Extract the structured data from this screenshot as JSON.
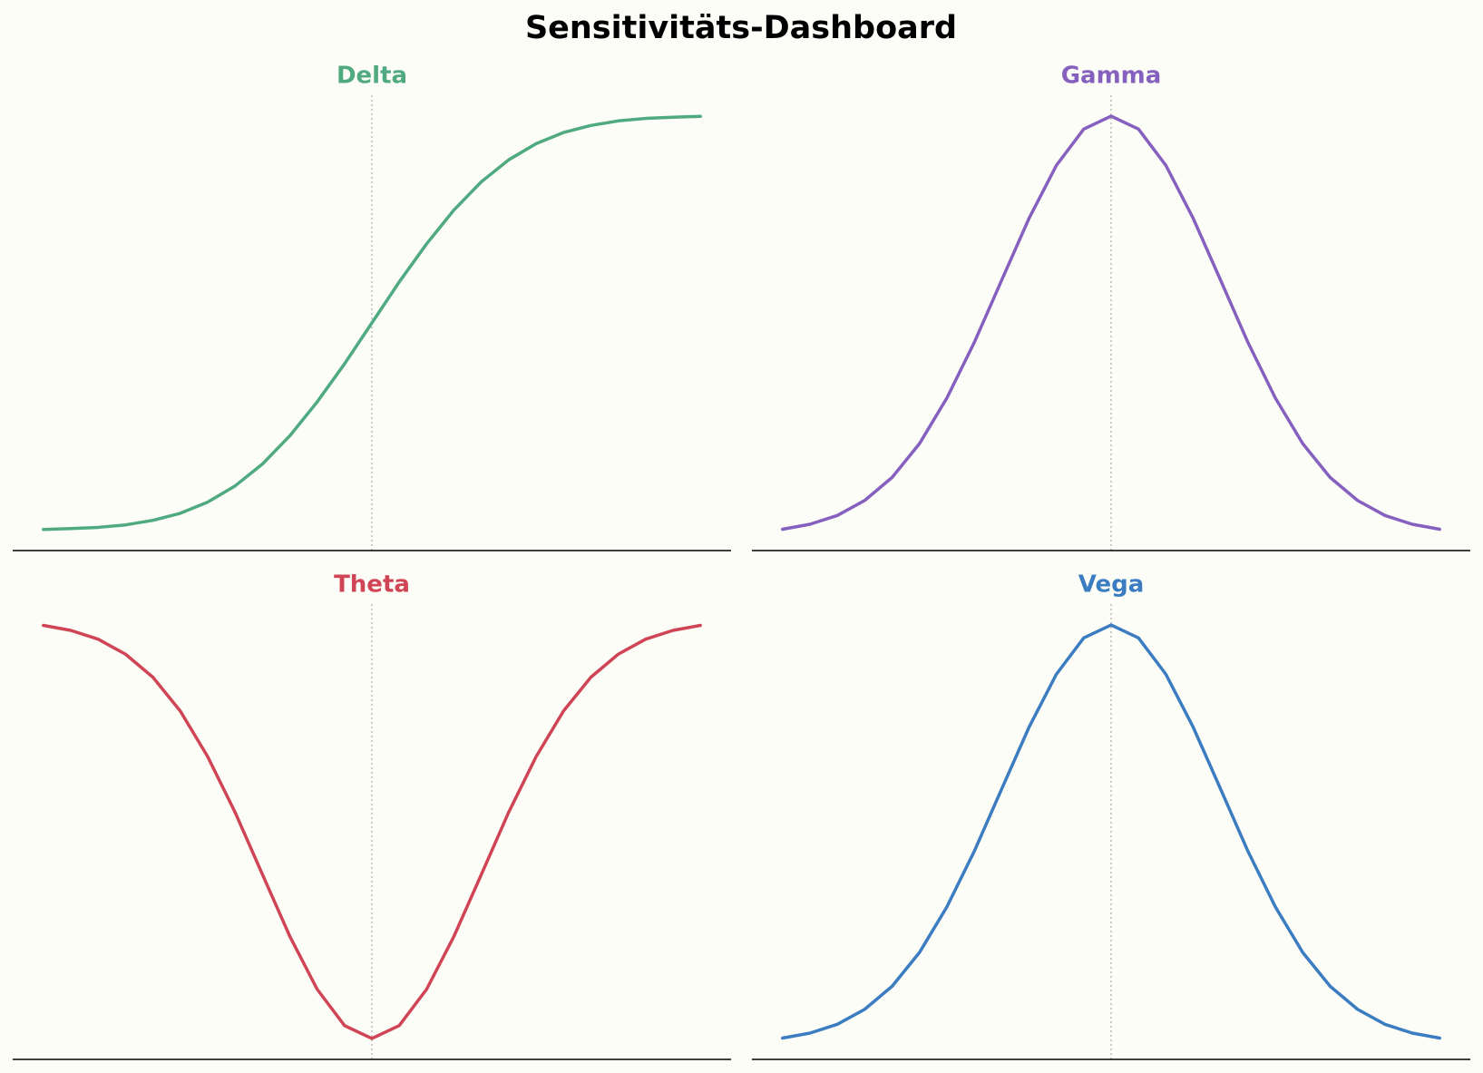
{
  "title": "Sensitivitäts-Dashboard",
  "chart_data": [
    {
      "type": "line",
      "title": "Delta",
      "color": "#4fab7f",
      "x": [
        -3,
        -2.75,
        -2.5,
        -2.25,
        -2,
        -1.75,
        -1.5,
        -1.25,
        -1,
        -0.75,
        -0.5,
        -0.25,
        0,
        0.25,
        0.5,
        0.75,
        1,
        1.25,
        1.5,
        1.75,
        2,
        2.25,
        2.5,
        2.75,
        3
      ],
      "values": [
        0.001,
        0.003,
        0.006,
        0.012,
        0.023,
        0.04,
        0.067,
        0.106,
        0.159,
        0.227,
        0.309,
        0.401,
        0.5,
        0.599,
        0.691,
        0.773,
        0.841,
        0.894,
        0.933,
        0.96,
        0.977,
        0.988,
        0.994,
        0.997,
        0.999
      ],
      "xlim": [
        -3.28,
        3.28
      ],
      "ylim": [
        -0.05,
        1.05
      ],
      "vline": 0
    },
    {
      "type": "line",
      "title": "Gamma",
      "color": "#8560be",
      "x": [
        -3,
        -2.75,
        -2.5,
        -2.25,
        -2,
        -1.75,
        -1.5,
        -1.25,
        -1,
        -0.75,
        -0.5,
        -0.25,
        0,
        0.25,
        0.5,
        0.75,
        1,
        1.25,
        1.5,
        1.75,
        2,
        2.25,
        2.5,
        2.75,
        3
      ],
      "values": [
        0.011,
        0.023,
        0.044,
        0.08,
        0.135,
        0.216,
        0.325,
        0.458,
        0.607,
        0.755,
        0.882,
        0.969,
        1,
        0.969,
        0.882,
        0.755,
        0.607,
        0.458,
        0.325,
        0.216,
        0.135,
        0.08,
        0.044,
        0.023,
        0.011
      ],
      "xlim": [
        -3.28,
        3.28
      ],
      "ylim": [
        -0.04,
        1.05
      ],
      "vline": 0
    },
    {
      "type": "line",
      "title": "Theta",
      "color": "#d04556",
      "x": [
        -3,
        -2.75,
        -2.5,
        -2.25,
        -2,
        -1.75,
        -1.5,
        -1.25,
        -1,
        -0.75,
        -0.5,
        -0.25,
        0,
        0.25,
        0.5,
        0.75,
        1,
        1.25,
        1.5,
        1.75,
        2,
        2.25,
        2.5,
        2.75,
        3
      ],
      "values": [
        -0.011,
        -0.023,
        -0.044,
        -0.08,
        -0.135,
        -0.216,
        -0.325,
        -0.458,
        -0.607,
        -0.755,
        -0.882,
        -0.969,
        -1,
        -0.969,
        -0.882,
        -0.755,
        -0.607,
        -0.458,
        -0.325,
        -0.216,
        -0.135,
        -0.08,
        -0.044,
        -0.023,
        -0.011
      ],
      "xlim": [
        -3.28,
        3.28
      ],
      "ylim": [
        -1.05,
        0.04
      ],
      "vline": 0
    },
    {
      "type": "line",
      "title": "Vega",
      "color": "#3b7dc0",
      "x": [
        -3,
        -2.75,
        -2.5,
        -2.25,
        -2,
        -1.75,
        -1.5,
        -1.25,
        -1,
        -0.75,
        -0.5,
        -0.25,
        0,
        0.25,
        0.5,
        0.75,
        1,
        1.25,
        1.5,
        1.75,
        2,
        2.25,
        2.5,
        2.75,
        3
      ],
      "values": [
        0.011,
        0.023,
        0.044,
        0.08,
        0.135,
        0.216,
        0.325,
        0.458,
        0.607,
        0.755,
        0.882,
        0.969,
        1,
        0.969,
        0.882,
        0.755,
        0.607,
        0.458,
        0.325,
        0.216,
        0.135,
        0.08,
        0.044,
        0.023,
        0.011
      ],
      "xlim": [
        -3.28,
        3.28
      ],
      "ylim": [
        -0.04,
        1.05
      ],
      "vline": 0
    }
  ]
}
